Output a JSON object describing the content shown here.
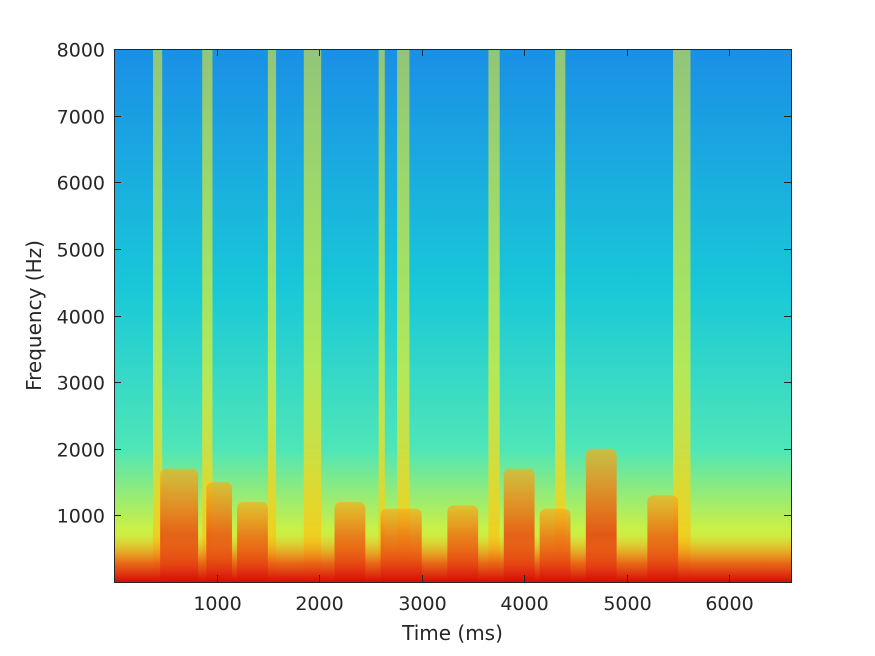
{
  "chart_data": {
    "type": "heatmap",
    "title": "",
    "xlabel": "Time (ms)",
    "ylabel": "Frequency (Hz)",
    "xlim": [
      0,
      6600
    ],
    "ylim": [
      0,
      8000
    ],
    "x_ticks": [
      1000,
      2000,
      3000,
      4000,
      5000,
      6000
    ],
    "x_tick_labels": [
      "1000",
      "2000",
      "3000",
      "4000",
      "5000",
      "6000"
    ],
    "y_ticks": [
      1000,
      2000,
      3000,
      4000,
      5000,
      6000,
      7000,
      8000
    ],
    "y_tick_labels": [
      "1000",
      "2000",
      "3000",
      "4000",
      "5000",
      "6000",
      "7000",
      "8000"
    ],
    "grid": false,
    "colormap": "jet",
    "colormap_stops": [
      "#0a2fc8",
      "#1a7fe8",
      "#19d8d8",
      "#7cf58a",
      "#f3f021",
      "#f59a18",
      "#dc1010"
    ],
    "high_energy_bands": [
      {
        "t": [
          380,
          470
        ],
        "f_max": 8000
      },
      {
        "t": [
          860,
          960
        ],
        "f_max": 8000
      },
      {
        "t": [
          1500,
          1580
        ],
        "f_max": 8000
      },
      {
        "t": [
          1850,
          2020
        ],
        "f_max": 8000
      },
      {
        "t": [
          2580,
          2640
        ],
        "f_max": 8000
      },
      {
        "t": [
          2760,
          2880
        ],
        "f_max": 8000
      },
      {
        "t": [
          3650,
          3760
        ],
        "f_max": 8000
      },
      {
        "t": [
          4300,
          4400
        ],
        "f_max": 8000
      },
      {
        "t": [
          5450,
          5620
        ],
        "f_max": 8000
      }
    ],
    "voiced_segments": [
      {
        "t": [
          450,
          820
        ],
        "f_max": 1700
      },
      {
        "t": [
          900,
          1150
        ],
        "f_max": 1500
      },
      {
        "t": [
          1200,
          1500
        ],
        "f_max": 1200
      },
      {
        "t": [
          2150,
          2450
        ],
        "f_max": 1200
      },
      {
        "t": [
          2600,
          3000
        ],
        "f_max": 1100
      },
      {
        "t": [
          3250,
          3550
        ],
        "f_max": 1150
      },
      {
        "t": [
          3800,
          4100
        ],
        "f_max": 1700
      },
      {
        "t": [
          4150,
          4450
        ],
        "f_max": 1100
      },
      {
        "t": [
          4600,
          4900
        ],
        "f_max": 2000
      },
      {
        "t": [
          5200,
          5500
        ],
        "f_max": 1300
      }
    ]
  }
}
